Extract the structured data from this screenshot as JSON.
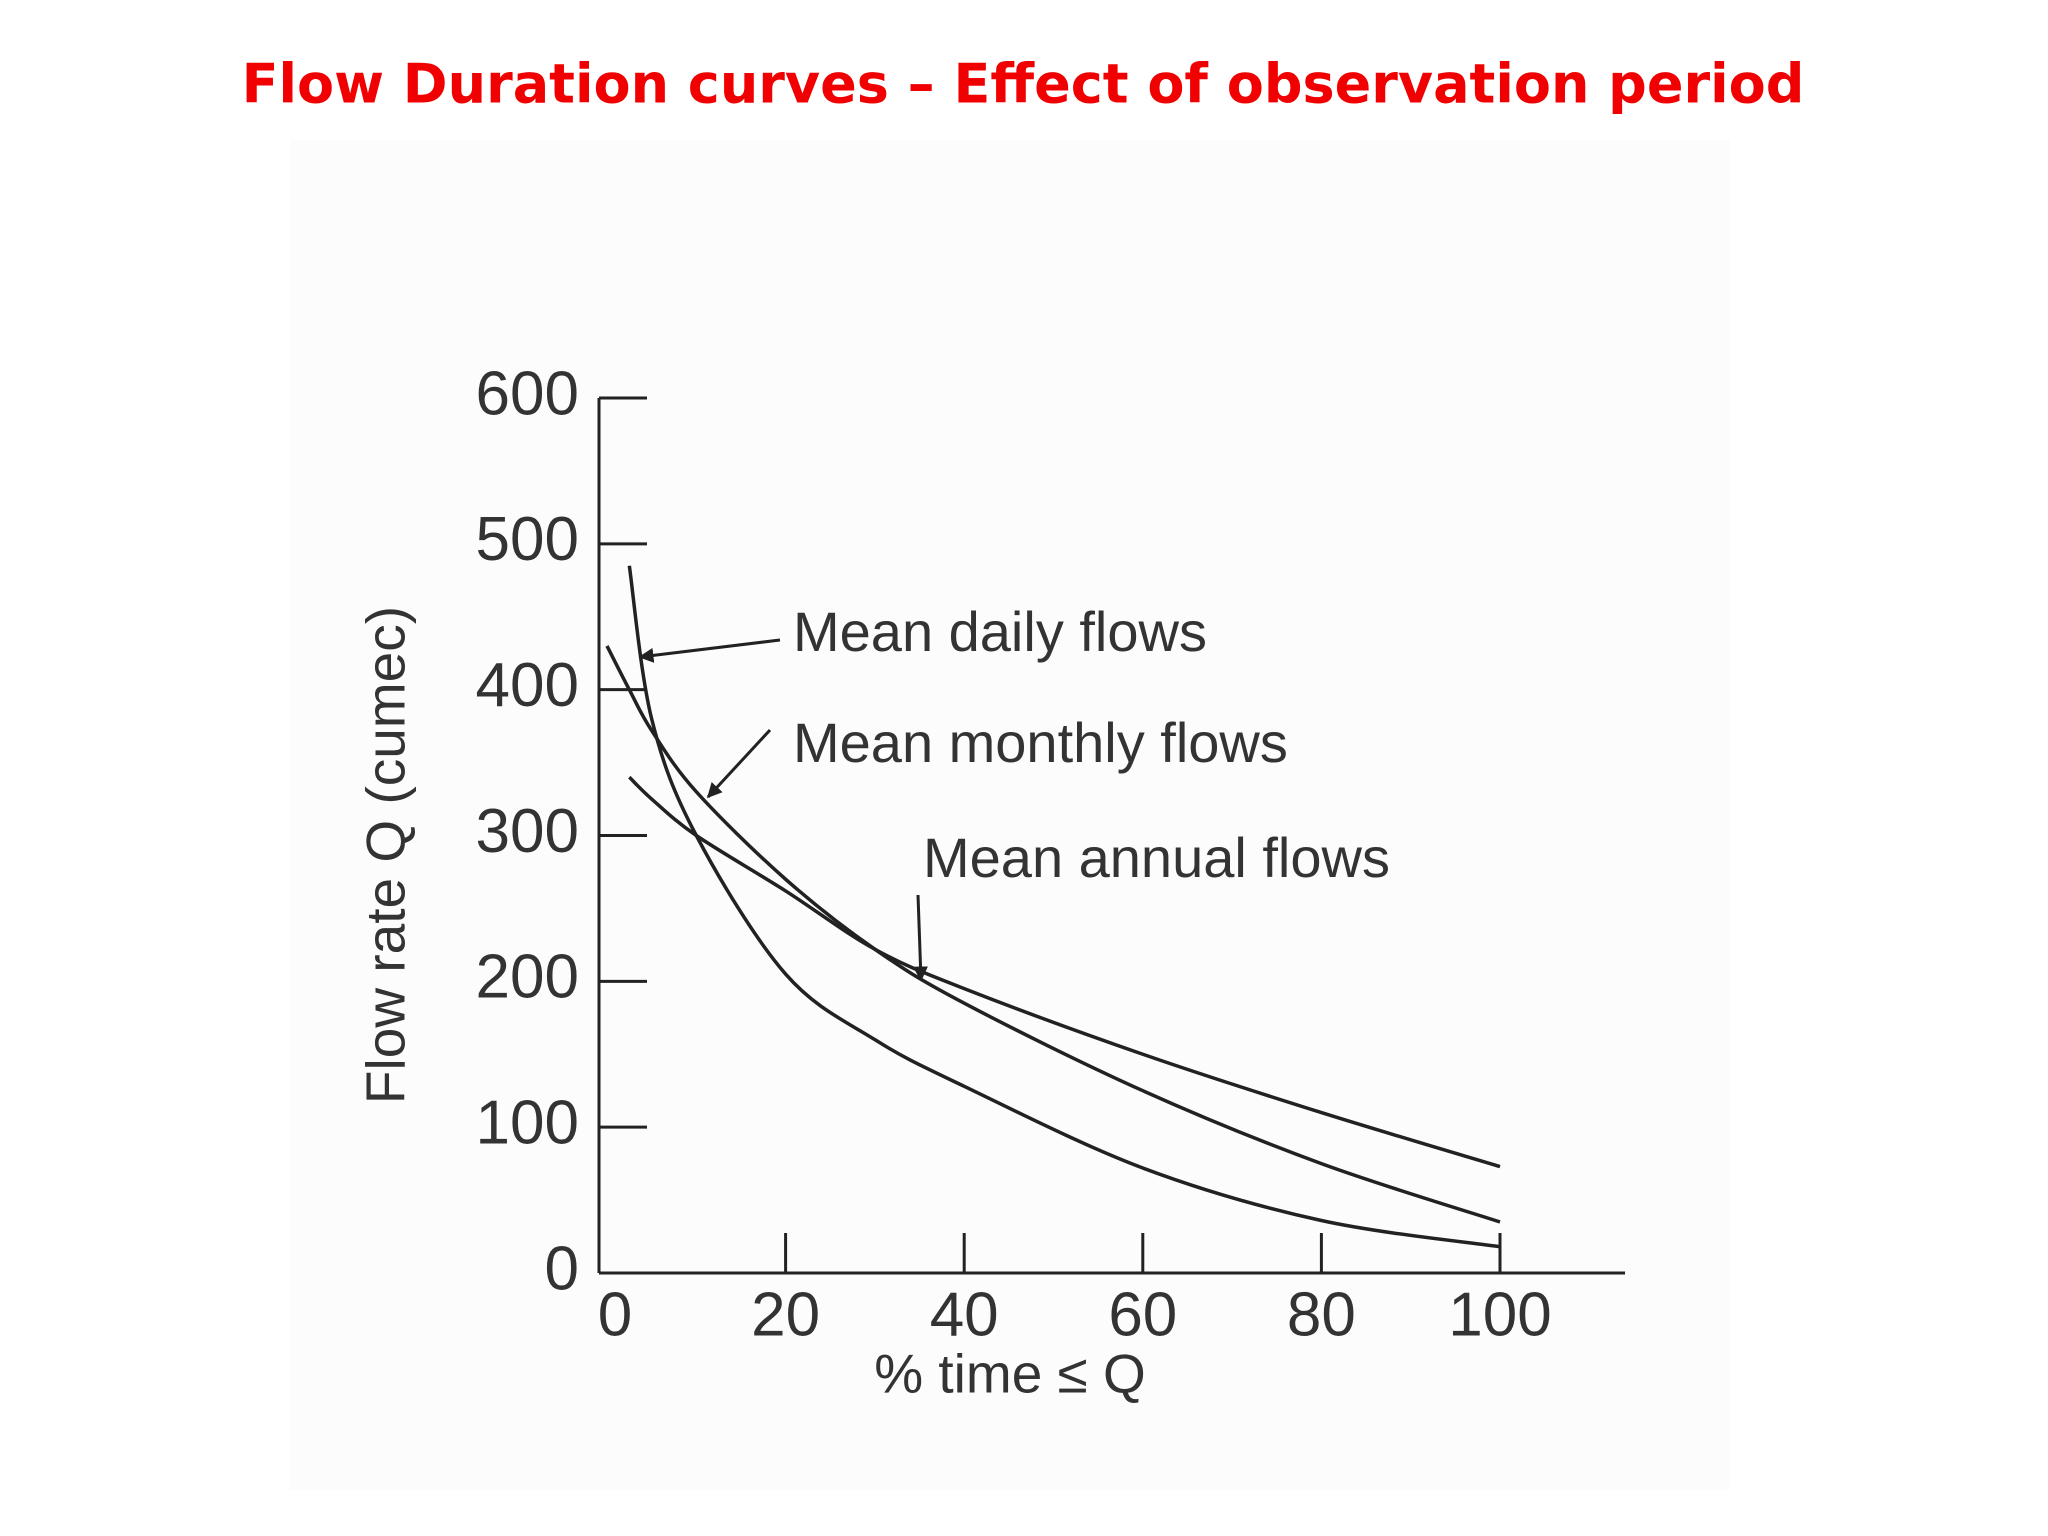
{
  "chart_data": {
    "type": "line",
    "title": "Flow Duration curves – Effect of observation period",
    "x_label": "% time ≤ Q",
    "y_label": "Flow rate Q (cumec)",
    "x": [
      0,
      2.5,
      5,
      10,
      20,
      30,
      40,
      60,
      80,
      100
    ],
    "series": [
      {
        "name": "Mean daily flows",
        "color": "#222222",
        "values": [
          null,
          485,
          380,
          300,
          205,
          160,
          128,
          72,
          36,
          18
        ]
      },
      {
        "name": "Mean monthly flows",
        "color": "#222222",
        "values": [
          430,
          400,
          372,
          330,
          270,
          222,
          185,
          125,
          75,
          35
        ]
      },
      {
        "name": "Mean annual flows",
        "color": "#222222",
        "values": [
          null,
          340,
          325,
          300,
          262,
          222,
          195,
          150,
          110,
          73
        ]
      }
    ],
    "xlim": [
      0,
      114
    ],
    "xticks": [
      0,
      20,
      40,
      60,
      80,
      100
    ],
    "ylim": [
      0,
      600
    ],
    "yticks": [
      0,
      100,
      200,
      300,
      400,
      500,
      600
    ],
    "grid": false
  }
}
